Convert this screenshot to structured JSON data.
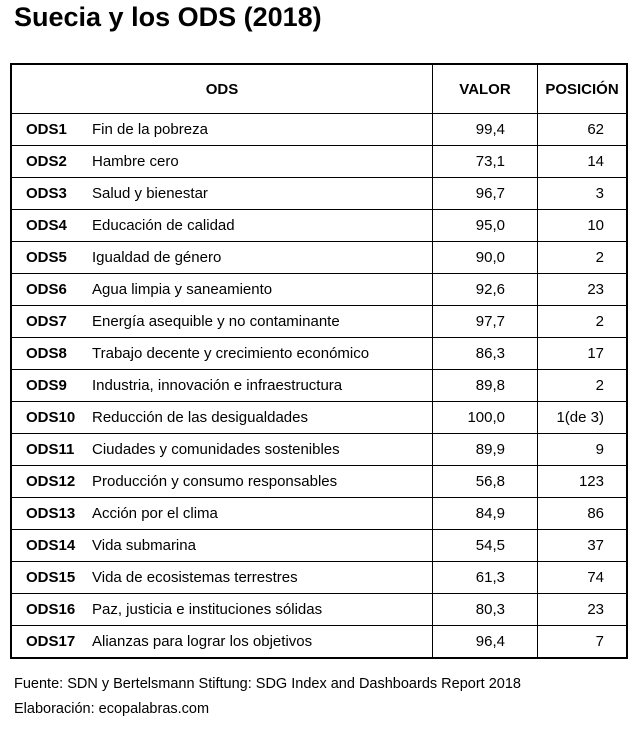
{
  "title": "Suecia y los ODS (2018)",
  "headers": {
    "ods": "ODS",
    "valor": "VALOR",
    "posicion": "POSICIÓN"
  },
  "rows": [
    {
      "code": "ODS1",
      "name": "Fin de la pobreza",
      "valor": "99,4",
      "posicion": "62"
    },
    {
      "code": "ODS2",
      "name": "Hambre cero",
      "valor": "73,1",
      "posicion": "14"
    },
    {
      "code": "ODS3",
      "name": "Salud y  bienestar",
      "valor": "96,7",
      "posicion": "3"
    },
    {
      "code": "ODS4",
      "name": "Educación de calidad",
      "valor": "95,0",
      "posicion": "10"
    },
    {
      "code": "ODS5",
      "name": "Igualdad de género",
      "valor": "90,0",
      "posicion": "2"
    },
    {
      "code": "ODS6",
      "name": "Agua limpia y saneamiento",
      "valor": "92,6",
      "posicion": "23"
    },
    {
      "code": "ODS7",
      "name": "Energía asequible y no contaminante",
      "valor": "97,7",
      "posicion": "2"
    },
    {
      "code": "ODS8",
      "name": "Trabajo decente y crecimiento económico",
      "valor": "86,3",
      "posicion": "17"
    },
    {
      "code": "ODS9",
      "name": "Industria, innovación e infraestructura",
      "valor": "89,8",
      "posicion": "2"
    },
    {
      "code": "ODS10",
      "name": "Reducción de las desigualdades",
      "valor": "100,0",
      "posicion": "1(de 3)"
    },
    {
      "code": "ODS11",
      "name": "Ciudades y comunidades sostenibles",
      "valor": "89,9",
      "posicion": "9"
    },
    {
      "code": "ODS12",
      "name": "Producción y consumo responsables",
      "valor": "56,8",
      "posicion": "123"
    },
    {
      "code": "ODS13",
      "name": "Acción por el clima",
      "valor": "84,9",
      "posicion": "86"
    },
    {
      "code": "ODS14",
      "name": "Vida submarina",
      "valor": "54,5",
      "posicion": "37"
    },
    {
      "code": "ODS15",
      "name": "Vida de ecosistemas terrestres",
      "valor": "61,3",
      "posicion": "74"
    },
    {
      "code": "ODS16",
      "name": "Paz, justicia e instituciones sólidas",
      "valor": "80,3",
      "posicion": "23"
    },
    {
      "code": "ODS17",
      "name": "Alianzas para lograr los objetivos",
      "valor": "96,4",
      "posicion": "7"
    }
  ],
  "footer": {
    "source": "Fuente: SDN y Bertelsmann Stiftung: SDG Index and Dashboards Report 2018",
    "credit": "Elaboración: ecopalabras.com"
  }
}
